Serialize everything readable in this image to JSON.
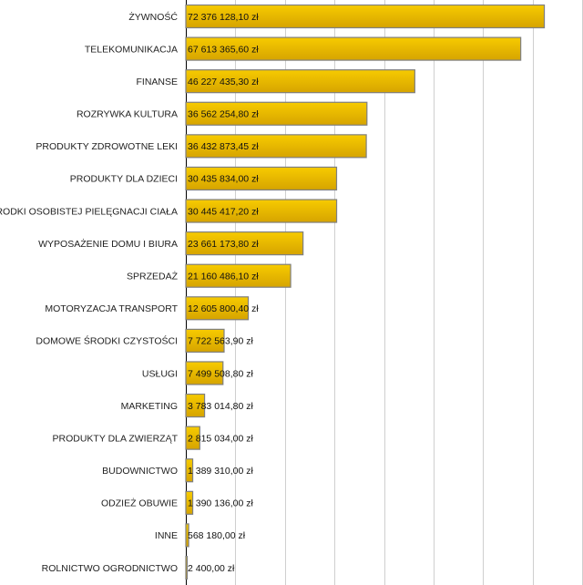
{
  "chart_data": {
    "type": "bar",
    "orientation": "horizontal",
    "title": "",
    "xlabel": "",
    "ylabel": "",
    "xlim": [
      0,
      80000000
    ],
    "grid": true,
    "categories": [
      "ŻYWNOŚĆ",
      "TELEKOMUNIKACJA",
      "FINANSE",
      "ROZRYWKA KULTURA",
      "PRODUKTY ZDROWOTNE LEKI",
      "PRODUKTY DLA DZIECI",
      "ŚRODKI OSOBISTEJ PIELĘGNACJI CIAŁA",
      "WYPOSAŻENIE DOMU I BIURA",
      "SPRZEDAŻ",
      "MOTORYZACJA TRANSPORT",
      "DOMOWE ŚRODKI CZYSTOŚCI",
      "USŁUGI",
      "MARKETING",
      "PRODUKTY DLA ZWIERZĄT",
      "BUDOWNICTWO",
      "ODZIEŻ OBUWIE",
      "INNE",
      "ROLNICTWO OGRODNICTWO"
    ],
    "values": [
      72376128.1,
      67613365.6,
      46227435.3,
      36562254.8,
      36432873.45,
      30435834.0,
      30445417.2,
      23661173.8,
      21160486.1,
      12605800.4,
      7722563.9,
      7499508.8,
      3783014.8,
      2815034.0,
      1389310.0,
      1390136.0,
      568180.0,
      2400.0
    ],
    "data_labels": [
      "72 376 128,10 zł",
      "67 613 365,60 zł",
      "46 227 435,30 zł",
      "36 562 254,80 zł",
      "36 432 873,45 zł",
      "30 435 834,00 zł",
      "30 445 417,20 zł",
      "23 661 173,80 zł",
      "21 160 486,10 zł",
      "12 605 800,40 zł",
      "7 722 563,90 zł",
      "7 499 508,80 zł",
      "3 783 014,80 zł",
      "2 815 034,00 zł",
      "1 389 310,00 zł",
      "1 390 136,00 zł",
      "568 180,00 zł",
      "2 400,00 zł"
    ],
    "colors": {
      "bar_top": "#f7cb00",
      "bar_bottom": "#d6a400",
      "bar_border": "#7f7f7f",
      "grid": "#cfcfcf",
      "axis": "#000000"
    }
  }
}
